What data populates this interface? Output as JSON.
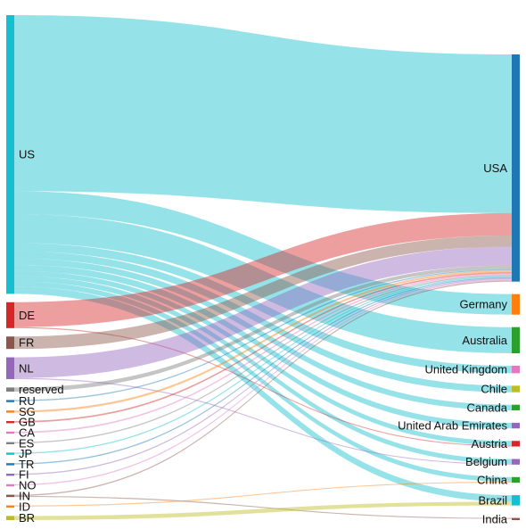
{
  "chart_data": {
    "type": "sankey",
    "sources": [
      {
        "id": "US",
        "label": "US",
        "color": "#17becf"
      },
      {
        "id": "DE",
        "label": "DE",
        "color": "#d62728"
      },
      {
        "id": "FR",
        "label": "FR",
        "color": "#8c564b"
      },
      {
        "id": "NL",
        "label": "NL",
        "color": "#9467bd"
      },
      {
        "id": "reserved",
        "label": "reserved",
        "color": "#7f7f7f"
      },
      {
        "id": "RU",
        "label": "RU",
        "color": "#1f77b4"
      },
      {
        "id": "SG",
        "label": "SG",
        "color": "#ff7f0e"
      },
      {
        "id": "GB",
        "label": "GB",
        "color": "#d62728"
      },
      {
        "id": "CA",
        "label": "CA",
        "color": "#e377c2"
      },
      {
        "id": "ES",
        "label": "ES",
        "color": "#7f7f7f"
      },
      {
        "id": "JP",
        "label": "JP",
        "color": "#17becf"
      },
      {
        "id": "TR",
        "label": "TR",
        "color": "#1f77b4"
      },
      {
        "id": "FI",
        "label": "FI",
        "color": "#9467bd"
      },
      {
        "id": "NO",
        "label": "NO",
        "color": "#e377c2"
      },
      {
        "id": "IN",
        "label": "IN",
        "color": "#8c564b"
      },
      {
        "id": "ID",
        "label": "ID",
        "color": "#ff7f0e"
      },
      {
        "id": "BR",
        "label": "BR",
        "color": "#bcbd22"
      }
    ],
    "targets": [
      {
        "id": "USA",
        "label": "USA",
        "color": "#1f77b4"
      },
      {
        "id": "Germany",
        "label": "Germany",
        "color": "#ff7f0e"
      },
      {
        "id": "Australia",
        "label": "Australia",
        "color": "#2ca02c"
      },
      {
        "id": "United Kingdom",
        "label": "United Kingdom",
        "color": "#e377c2"
      },
      {
        "id": "Chile",
        "label": "Chile",
        "color": "#bcbd22"
      },
      {
        "id": "Canada",
        "label": "Canada",
        "color": "#2ca02c"
      },
      {
        "id": "United Arab Emirates",
        "label": "United Arab Emirates",
        "color": "#9467bd"
      },
      {
        "id": "Austria",
        "label": "Austria",
        "color": "#d62728"
      },
      {
        "id": "Belgium",
        "label": "Belgium",
        "color": "#9467bd"
      },
      {
        "id": "China",
        "label": "China",
        "color": "#2ca02c"
      },
      {
        "id": "Brazil",
        "label": "Brazil",
        "color": "#17becf"
      },
      {
        "id": "India",
        "label": "India",
        "color": "#8c564b"
      }
    ],
    "links": [
      {
        "source": "US",
        "target": "USA",
        "value": 170
      },
      {
        "source": "US",
        "target": "Australia",
        "value": 28
      },
      {
        "source": "US",
        "target": "Germany",
        "value": 22
      },
      {
        "source": "US",
        "target": "United Kingdom",
        "value": 8
      },
      {
        "source": "US",
        "target": "Chile",
        "value": 7
      },
      {
        "source": "US",
        "target": "Canada",
        "value": 6
      },
      {
        "source": "US",
        "target": "United Arab Emirates",
        "value": 6
      },
      {
        "source": "US",
        "target": "Austria",
        "value": 5
      },
      {
        "source": "US",
        "target": "Belgium",
        "value": 5
      },
      {
        "source": "US",
        "target": "China",
        "value": 5
      },
      {
        "source": "US",
        "target": "Brazil",
        "value": 7
      },
      {
        "source": "DE",
        "target": "USA",
        "value": 24
      },
      {
        "source": "DE",
        "target": "Austria",
        "value": 1
      },
      {
        "source": "FR",
        "target": "USA",
        "value": 12
      },
      {
        "source": "NL",
        "target": "USA",
        "value": 20
      },
      {
        "source": "NL",
        "target": "Belgium",
        "value": 1
      },
      {
        "source": "reserved",
        "target": "USA",
        "value": 4
      },
      {
        "source": "RU",
        "target": "USA",
        "value": 1.2
      },
      {
        "source": "SG",
        "target": "USA",
        "value": 2
      },
      {
        "source": "GB",
        "target": "USA",
        "value": 1.5
      },
      {
        "source": "CA",
        "target": "USA",
        "value": 1.5
      },
      {
        "source": "ES",
        "target": "USA",
        "value": 1.2
      },
      {
        "source": "JP",
        "target": "USA",
        "value": 1.2
      },
      {
        "source": "TR",
        "target": "USA",
        "value": 1.2
      },
      {
        "source": "FI",
        "target": "USA",
        "value": 1.2
      },
      {
        "source": "NO",
        "target": "USA",
        "value": 1.2
      },
      {
        "source": "IN",
        "target": "USA",
        "value": 1.2
      },
      {
        "source": "IN",
        "target": "India",
        "value": 1
      },
      {
        "source": "ID",
        "target": "China",
        "value": 1
      },
      {
        "source": "BR",
        "target": "Brazil",
        "value": 4
      }
    ]
  }
}
